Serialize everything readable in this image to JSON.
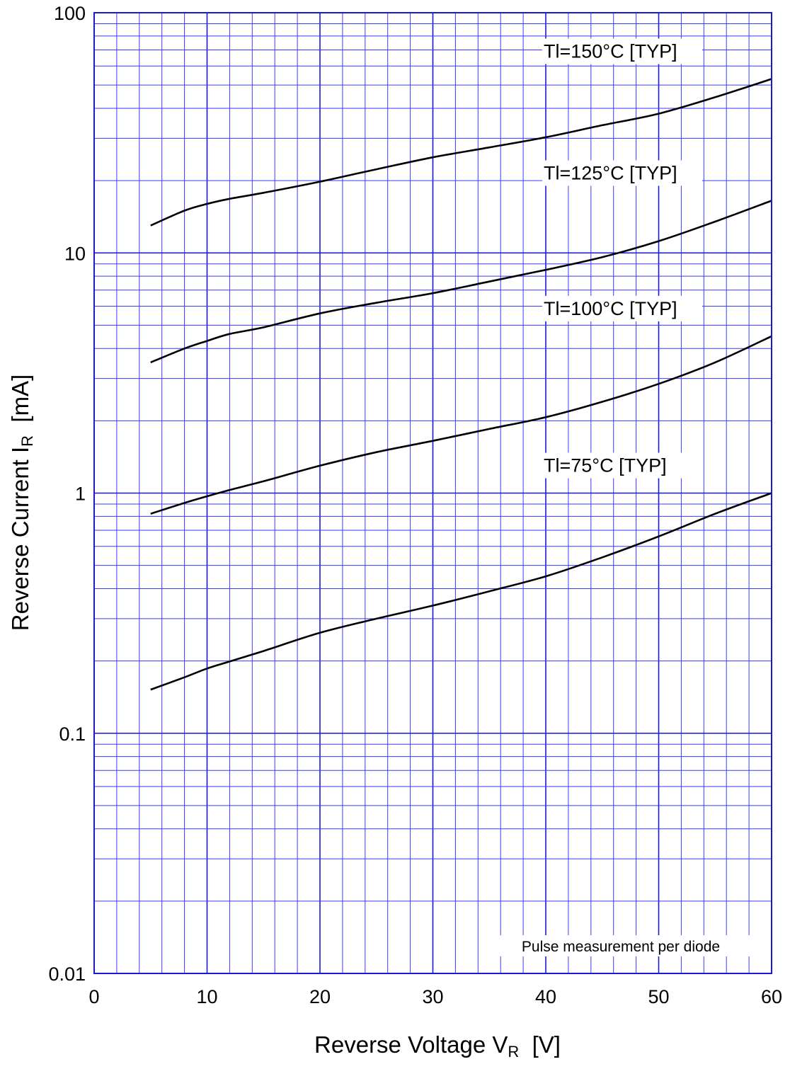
{
  "chart_data": {
    "type": "line",
    "title": "",
    "xlabel": "Reverse Voltage  V",
    "xlabel_sub": "R",
    "xlabel_unit": "  [V]",
    "ylabel": "Reverse Current  I",
    "ylabel_sub": "R",
    "ylabel_unit": "  [mA]",
    "xlim": [
      0,
      60
    ],
    "ylim": [
      0.01,
      100
    ],
    "yscale": "log",
    "grid": true,
    "x_ticks": [
      0,
      10,
      20,
      30,
      40,
      50,
      60
    ],
    "x_tick_labels": [
      "0",
      "10",
      "20",
      "30",
      "40",
      "50",
      "60"
    ],
    "y_ticks": [
      0.01,
      0.1,
      1,
      10,
      100
    ],
    "y_tick_labels": [
      "0.01",
      "0.1",
      "1",
      "10",
      "100"
    ],
    "annotation": "Pulse  measurement  per  diode",
    "colors": {
      "grid": "#3a3aff",
      "frame": "#1a1ad6",
      "curve": "#000000"
    },
    "series": [
      {
        "name": "Tl=150°C [TYP]",
        "x": [
          5,
          8,
          10,
          12,
          15,
          20,
          25,
          30,
          35,
          40,
          45,
          50,
          55,
          60
        ],
        "y": [
          13,
          15,
          16,
          16.8,
          17.8,
          19.8,
          22.3,
          25,
          27.5,
          30.3,
          34,
          38,
          44.5,
          53
        ]
      },
      {
        "name": "Tl=125°C [TYP]",
        "x": [
          5,
          8,
          10,
          12,
          15,
          20,
          25,
          30,
          35,
          40,
          45,
          50,
          55,
          60
        ],
        "y": [
          3.5,
          4,
          4.3,
          4.6,
          4.9,
          5.6,
          6.2,
          6.8,
          7.6,
          8.5,
          9.6,
          11.2,
          13.5,
          16.5
        ]
      },
      {
        "name": "Tl=100°C [TYP]",
        "x": [
          5,
          8,
          10,
          12,
          15,
          20,
          25,
          30,
          35,
          40,
          45,
          50,
          55,
          60
        ],
        "y": [
          0.82,
          0.91,
          0.97,
          1.03,
          1.12,
          1.3,
          1.48,
          1.65,
          1.85,
          2.07,
          2.4,
          2.85,
          3.5,
          4.5
        ]
      },
      {
        "name": "Tl=75°C [TYP]",
        "x": [
          5,
          8,
          10,
          12,
          15,
          20,
          25,
          30,
          35,
          40,
          45,
          50,
          55,
          60
        ],
        "y": [
          0.152,
          0.171,
          0.186,
          0.199,
          0.22,
          0.262,
          0.3,
          0.34,
          0.39,
          0.45,
          0.54,
          0.66,
          0.82,
          1.0
        ]
      }
    ]
  }
}
